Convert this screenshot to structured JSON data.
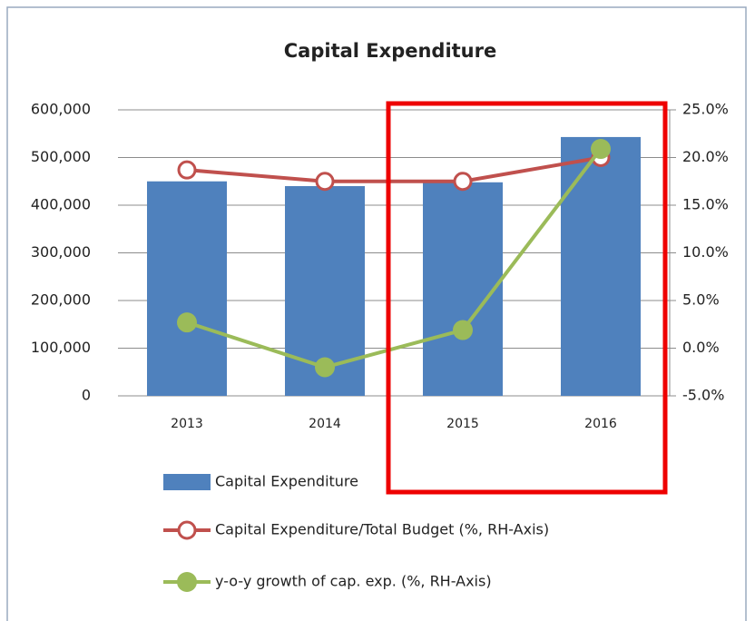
{
  "chart_data": {
    "type": "bar",
    "title": "Capital Expenditure",
    "categories": [
      "2013",
      "2014",
      "2015",
      "2016"
    ],
    "series": [
      {
        "name": "Capital Expenditure",
        "type": "bar",
        "color": "#4f81bd",
        "axis": "y",
        "values": [
          450000,
          440000,
          448000,
          543000
        ]
      },
      {
        "name": "Capital Expenditure/Total Budget (%, RH-Axis)",
        "type": "line",
        "marker": "open",
        "color": "#c0504d",
        "axis": "y2",
        "values": [
          18.7,
          17.5,
          17.5,
          20.0
        ]
      },
      {
        "name": "y-o-y growth of cap. exp. (%, RH-Axis)",
        "type": "line",
        "marker": "filled",
        "color": "#9bbb59",
        "axis": "y2",
        "values": [
          2.7,
          -2.0,
          1.9,
          20.9
        ]
      }
    ],
    "ylim": [
      0,
      600000
    ],
    "yticks": [
      0,
      {
        "value": 100000,
        "label": "100,000"
      },
      {
        "value": 200000,
        "label": "200,000"
      },
      {
        "value": 300000,
        "label": "300,000"
      },
      {
        "value": 400000,
        "label": "400,000"
      },
      {
        "value": 500000,
        "label": "500,000"
      },
      {
        "value": 600000,
        "label": "600,000"
      }
    ],
    "y2lim": [
      -5,
      25
    ],
    "y2ticks": [
      {
        "value": -5,
        "label": "-5.0%"
      },
      {
        "value": 0,
        "label": "0.0%"
      },
      {
        "value": 5,
        "label": "5.0%"
      },
      {
        "value": 10,
        "label": "10.0%"
      },
      {
        "value": 15,
        "label": "15.0%"
      },
      {
        "value": 20,
        "label": "20.0%"
      },
      {
        "value": 25,
        "label": "25.0%"
      }
    ],
    "grid": true
  }
}
